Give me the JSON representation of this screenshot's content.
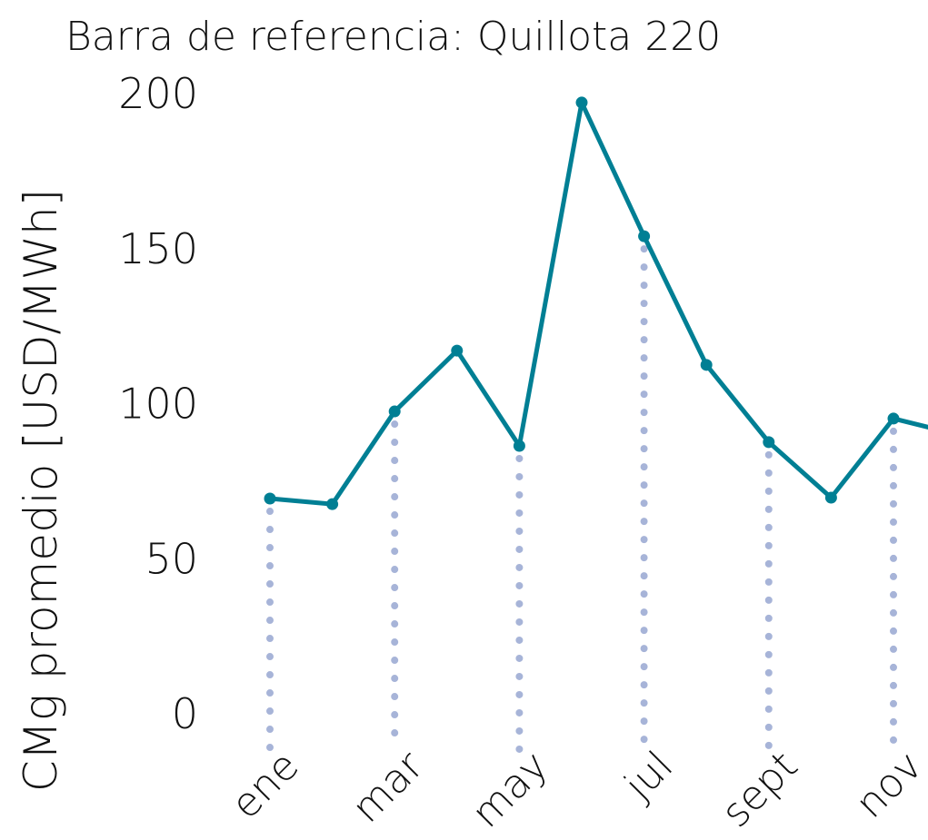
{
  "chart_data": {
    "type": "line",
    "title": "Barra de referencia: Quillota 220",
    "y_label": "CMg promedio [USD/MWh]",
    "categories": [
      "ene",
      null,
      "mar",
      null,
      "may",
      null,
      "jul",
      null,
      "sept",
      null,
      "nov",
      null
    ],
    "series": [
      {
        "name": "Quillota 220",
        "color": "#007f94",
        "values": [
          69.1,
          67.3,
          97.2,
          116.8,
          86.1,
          196.8,
          153.7,
          112.2,
          87.3,
          69.4,
          94.9,
          89.9
        ]
      }
    ],
    "dropline_color": "#a7b4d8",
    "ylim": [
      0,
      200
    ],
    "yticks": [
      0,
      50,
      100,
      150,
      200
    ]
  }
}
